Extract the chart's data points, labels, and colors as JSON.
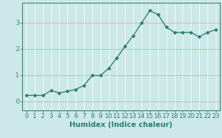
{
  "x": [
    0,
    1,
    2,
    3,
    4,
    5,
    6,
    7,
    8,
    9,
    10,
    11,
    12,
    13,
    14,
    15,
    16,
    17,
    18,
    19,
    20,
    21,
    22,
    23
  ],
  "y": [
    0.22,
    0.22,
    0.22,
    0.4,
    0.32,
    0.38,
    0.45,
    0.6,
    0.98,
    0.98,
    1.25,
    1.65,
    2.1,
    2.5,
    2.98,
    3.45,
    3.3,
    2.82,
    2.62,
    2.62,
    2.62,
    2.45,
    2.62,
    2.72
  ],
  "line_color": "#2e7d6e",
  "marker": "D",
  "marker_size": 2.5,
  "bg_color": "#cce8e8",
  "white_vgrid_color": "#ffffff",
  "red_hgrid_color": "#f0a0a0",
  "xlabel": "Humidex (Indice chaleur)",
  "xlim": [
    -0.5,
    23.5
  ],
  "ylim": [
    -0.35,
    3.75
  ],
  "yticks": [
    0,
    1,
    2,
    3
  ],
  "xticks": [
    0,
    1,
    2,
    3,
    4,
    5,
    6,
    7,
    8,
    9,
    10,
    11,
    12,
    13,
    14,
    15,
    16,
    17,
    18,
    19,
    20,
    21,
    22,
    23
  ],
  "xlabel_fontsize": 7.5,
  "tick_fontsize": 6.5
}
